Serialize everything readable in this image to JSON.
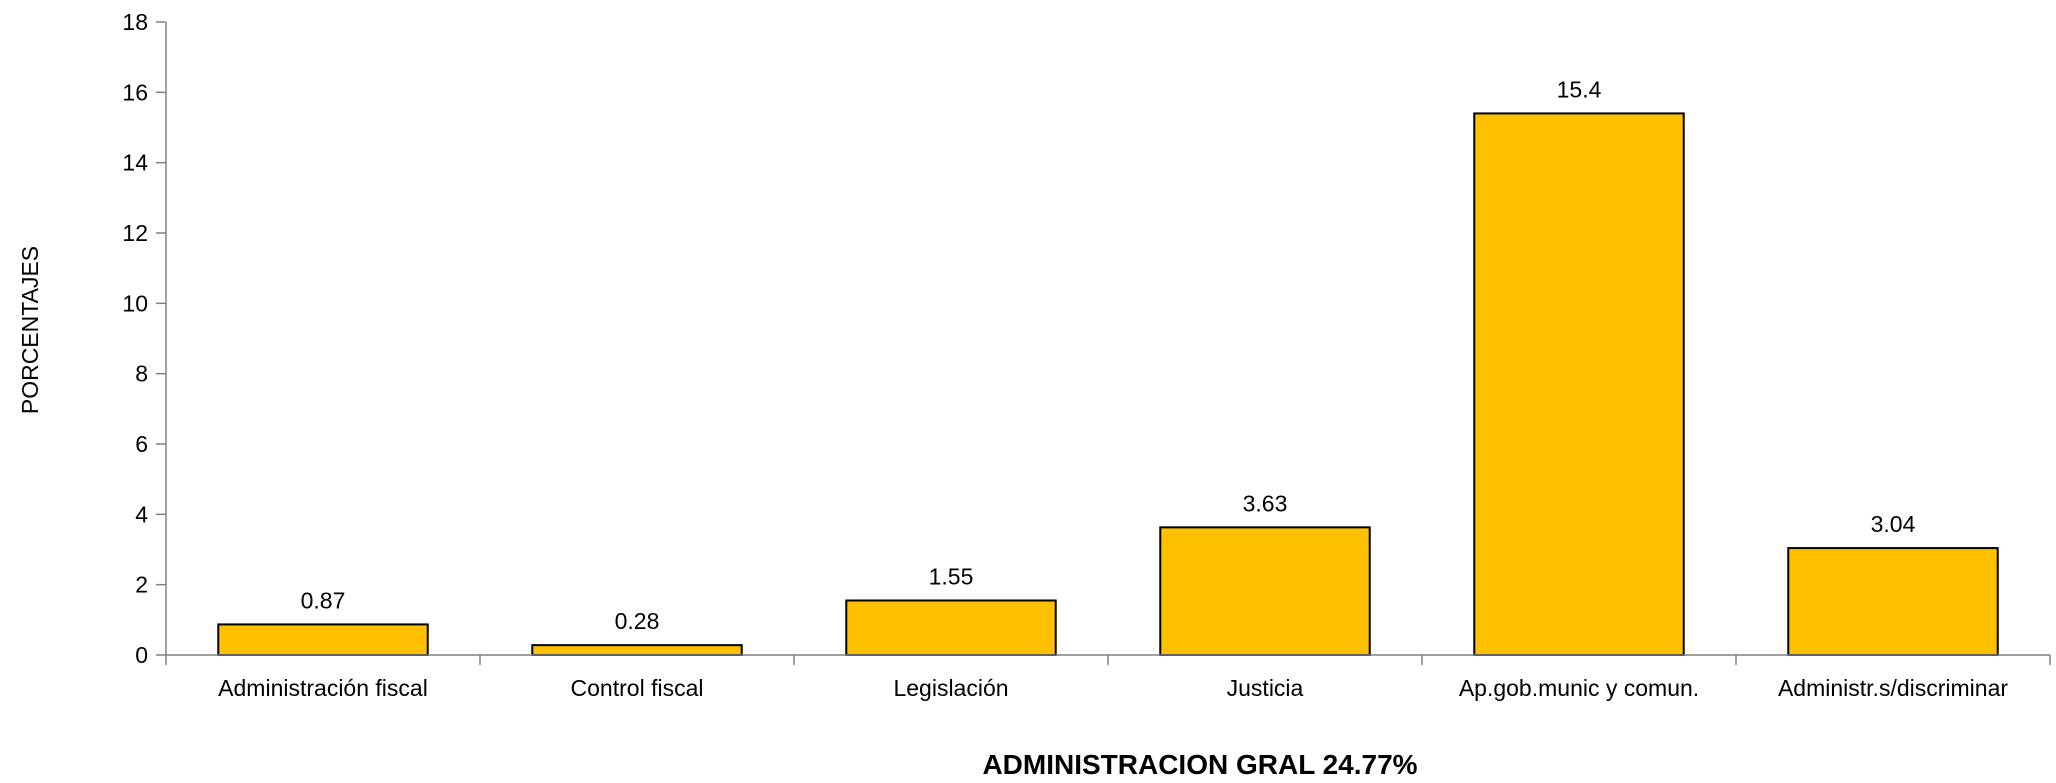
{
  "chart_data": {
    "type": "bar",
    "categories": [
      "Administración fiscal",
      "Control fiscal",
      "Legislación",
      "Justicia",
      "Ap.gob.munic y comun.",
      "Administr.s/discriminar"
    ],
    "values": [
      0.87,
      0.28,
      1.55,
      3.63,
      15.4,
      3.04
    ],
    "data_labels": [
      "0.87",
      "0.28",
      "1.55",
      "3.63",
      "15.4",
      "3.04"
    ],
    "xlabel": "ADMINISTRACION GRAL 24.77%",
    "ylabel": "PORCENTAJES",
    "ylim": [
      0,
      18
    ],
    "yticks": [
      0,
      2,
      4,
      6,
      8,
      10,
      12,
      14,
      16,
      18
    ],
    "bar_color": "#FFC000",
    "bar_edge_color": "#000000",
    "grid": false,
    "legend": "none"
  }
}
